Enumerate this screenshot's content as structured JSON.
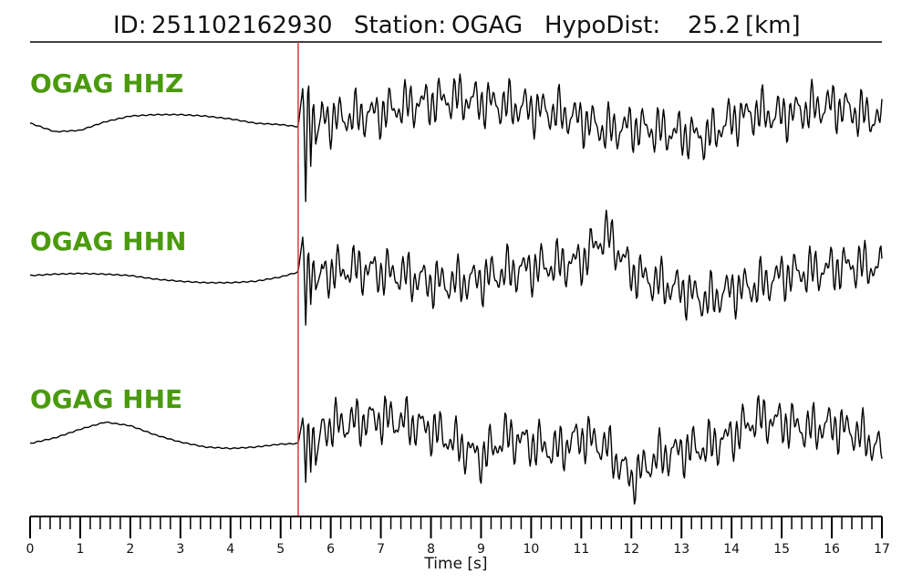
{
  "header": {
    "id_label": "ID:",
    "id_value": "251102162930",
    "station_label": "Station:",
    "station_value": "OGAG",
    "hypodist_label": "HypoDist:",
    "hypodist_value": "25.2",
    "hypodist_unit": "[km]"
  },
  "colors": {
    "channel_label": "#4a9a0c",
    "pick_line": "#e8323c",
    "trace": "#000000"
  },
  "chart_data": {
    "type": "line",
    "title": "ID: 251102162930   Station: OGAG   HypoDist:    25.2 [km]",
    "xlabel": "Time [s]",
    "xlim": [
      0,
      17
    ],
    "x_major_ticks": [
      0,
      1,
      2,
      3,
      4,
      5,
      6,
      7,
      8,
      9,
      10,
      11,
      12,
      13,
      14,
      15,
      16,
      17
    ],
    "x_minor_step": 0.2,
    "pick_time": 5.35,
    "series": [
      {
        "name": "OGAG HHZ",
        "x": [
          0,
          0.5,
          1.0,
          1.5,
          2.0,
          2.5,
          3.0,
          3.5,
          4.0,
          4.5,
          5.0,
          5.35,
          5.45,
          5.5,
          5.55,
          5.6,
          5.65,
          5.7,
          5.8,
          6.0,
          6.5,
          7.0,
          7.5,
          8.0,
          8.5,
          9.0,
          9.5,
          10.0,
          10.5,
          11.0,
          11.5,
          12.0,
          12.5,
          13.0,
          13.5,
          14.0,
          14.5,
          15.0,
          15.5,
          16.0,
          16.5,
          17.0
        ],
        "y": [
          0.0,
          -0.12,
          -0.1,
          0.02,
          0.1,
          0.12,
          0.12,
          0.1,
          0.06,
          0.0,
          -0.02,
          -0.05,
          0.55,
          -1.1,
          0.8,
          -0.6,
          0.4,
          -0.3,
          0.1,
          0.05,
          0.1,
          0.15,
          0.25,
          0.3,
          0.35,
          0.3,
          0.25,
          0.2,
          0.15,
          0.05,
          -0.1,
          -0.05,
          -0.1,
          -0.15,
          -0.2,
          0.05,
          0.15,
          0.1,
          0.2,
          0.25,
          0.15,
          0.05
        ]
      },
      {
        "name": "OGAG HHN",
        "x": [
          0,
          0.5,
          1.0,
          1.5,
          2.0,
          2.5,
          3.0,
          3.5,
          4.0,
          4.5,
          5.0,
          5.35,
          5.45,
          5.5,
          5.55,
          5.6,
          5.65,
          5.7,
          5.8,
          6.0,
          6.5,
          7.0,
          7.5,
          8.0,
          8.5,
          9.0,
          9.5,
          10.0,
          10.5,
          11.0,
          11.5,
          12.0,
          12.5,
          13.0,
          13.5,
          14.0,
          14.5,
          15.0,
          15.5,
          16.0,
          16.5,
          17.0
        ],
        "y": [
          0.0,
          0.02,
          0.03,
          0.02,
          0.0,
          -0.05,
          -0.08,
          -0.1,
          -0.1,
          -0.08,
          -0.02,
          0.05,
          0.6,
          -0.7,
          0.5,
          -0.4,
          0.3,
          -0.2,
          0.05,
          0.05,
          0.1,
          0.05,
          0.0,
          -0.1,
          -0.1,
          -0.05,
          0.05,
          0.1,
          0.15,
          0.2,
          0.6,
          0.05,
          -0.1,
          -0.2,
          -0.35,
          -0.2,
          -0.15,
          0.0,
          0.05,
          0.1,
          0.15,
          0.1
        ]
      },
      {
        "name": "OGAG HHE",
        "x": [
          0,
          0.5,
          1.0,
          1.5,
          2.0,
          2.5,
          3.0,
          3.5,
          4.0,
          4.5,
          5.0,
          5.35,
          5.45,
          5.5,
          5.55,
          5.6,
          5.65,
          5.7,
          5.8,
          6.0,
          6.5,
          7.0,
          7.5,
          8.0,
          8.5,
          9.0,
          9.5,
          10.0,
          10.5,
          11.0,
          11.5,
          12.0,
          12.5,
          13.0,
          13.5,
          14.0,
          14.5,
          15.0,
          15.5,
          16.0,
          16.5,
          17.0
        ],
        "y": [
          0.0,
          0.08,
          0.2,
          0.3,
          0.25,
          0.12,
          0.02,
          -0.05,
          -0.07,
          -0.05,
          -0.01,
          0.0,
          0.4,
          -0.55,
          0.45,
          -0.4,
          0.35,
          -0.3,
          0.2,
          0.25,
          0.3,
          0.35,
          0.3,
          0.2,
          0.0,
          -0.2,
          0.1,
          0.0,
          -0.1,
          0.1,
          -0.05,
          -0.5,
          -0.2,
          -0.1,
          -0.05,
          0.1,
          0.35,
          0.3,
          0.2,
          0.25,
          0.15,
          -0.1
        ]
      }
    ]
  }
}
